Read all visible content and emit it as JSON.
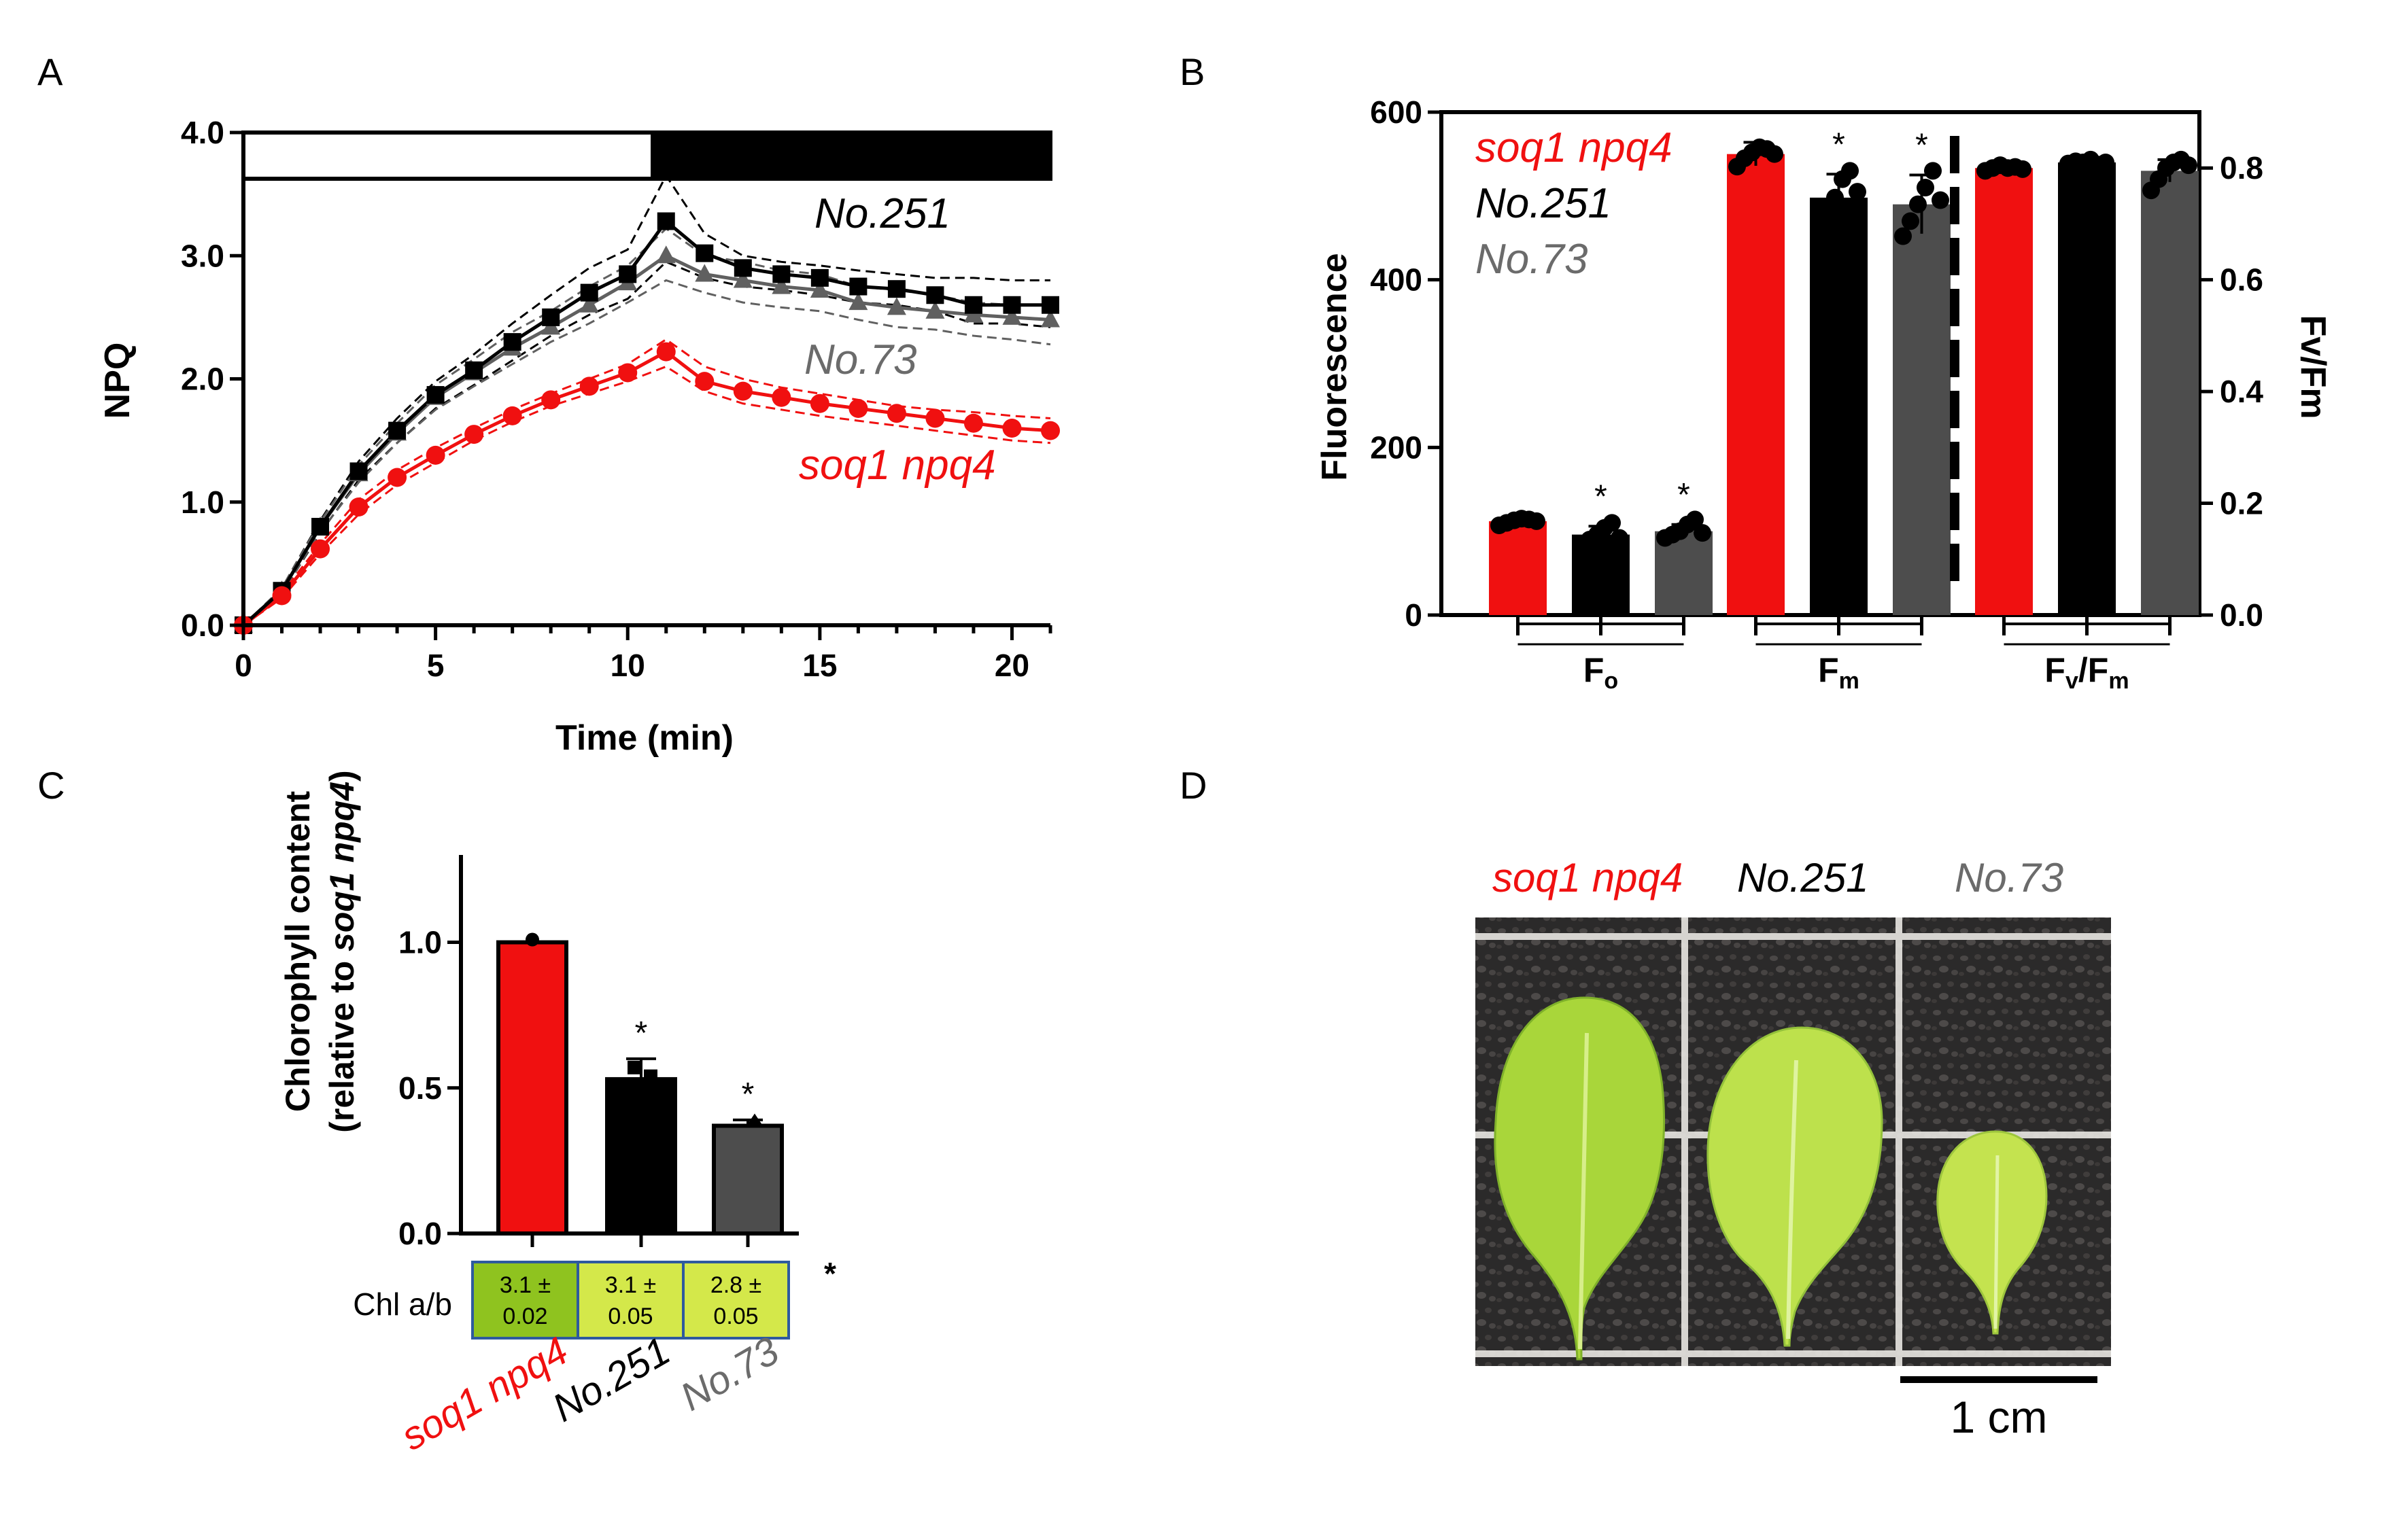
{
  "figure": {
    "panels": [
      {
        "label": "A"
      },
      {
        "label": "B"
      },
      {
        "label": "C"
      },
      {
        "label": "D"
      }
    ],
    "colors": {
      "red": "#f01010",
      "black": "#000000",
      "gray": "#4d4d4d",
      "gray_text": "#6b6b6b",
      "chl_cell_dark": "#8fc31f",
      "chl_cell_light": "#d4e84a",
      "chl_border": "#2e5a9e"
    },
    "panelA_labels": {
      "no251": "No.251",
      "no73": "No.73",
      "soq": "soq1 npq4"
    },
    "panelB_legend": [
      {
        "text": "soq1 npq4",
        "color": "#f01010"
      },
      {
        "text": "No.251",
        "color": "#000000"
      },
      {
        "text": "No.73",
        "color": "#6b6b6b"
      }
    ],
    "panelB_groups": [
      {
        "main": "F",
        "sub": "o",
        "tail": "",
        "tail_sub": ""
      },
      {
        "main": "F",
        "sub": "m",
        "tail": "",
        "tail_sub": ""
      },
      {
        "main": "F",
        "sub": "v",
        "tail": "/F",
        "tail_sub": "m"
      }
    ],
    "panelC_chl_label": "Chl a/b",
    "panelC_cells": [
      {
        "text": "3.1 ±",
        "text2": "0.02"
      },
      {
        "text": "3.1 ±",
        "text2": "0.05"
      },
      {
        "text": "2.8 ±",
        "text2": "0.05"
      }
    ],
    "panelC_chl_star": "*",
    "panelC_xlabels": [
      "soq1 npq4",
      "No.251",
      "No.73"
    ],
    "panelD": {
      "labels": [
        "soq1 npq4",
        "No.251",
        "No.73"
      ],
      "scale": "1 cm"
    }
  },
  "chart_data": [
    {
      "panel": "A",
      "type": "line",
      "xlabel": "Time (min)",
      "ylabel": "NPQ",
      "xlim": [
        0,
        21
      ],
      "ylim": [
        0,
        4
      ],
      "xticks": [
        0,
        5,
        10,
        15,
        20
      ],
      "yticks": [
        0.0,
        1.0,
        2.0,
        3.0,
        4.0
      ],
      "light_bar": {
        "light": [
          0,
          11
        ],
        "dark": [
          11,
          21
        ]
      },
      "series": [
        {
          "name": "No.251",
          "color": "#000000",
          "marker": "square",
          "x": [
            0,
            1,
            2,
            3,
            4,
            5,
            6,
            7,
            8,
            9,
            10,
            11,
            12,
            13,
            14,
            15,
            16,
            17,
            18,
            19,
            20,
            21
          ],
          "y": [
            0,
            0.28,
            0.8,
            1.25,
            1.58,
            1.87,
            2.07,
            2.3,
            2.5,
            2.7,
            2.85,
            3.28,
            3.02,
            2.9,
            2.85,
            2.82,
            2.75,
            2.73,
            2.68,
            2.6,
            2.6,
            2.6
          ],
          "upper": [
            0,
            0.3,
            0.85,
            1.33,
            1.68,
            1.98,
            2.2,
            2.45,
            2.68,
            2.9,
            3.05,
            3.65,
            3.18,
            3.0,
            2.95,
            2.92,
            2.88,
            2.85,
            2.82,
            2.82,
            2.8,
            2.8
          ],
          "lower": [
            0,
            0.26,
            0.75,
            1.18,
            1.48,
            1.76,
            1.95,
            2.15,
            2.35,
            2.52,
            2.65,
            2.95,
            2.82,
            2.75,
            2.72,
            2.68,
            2.62,
            2.6,
            2.55,
            2.45,
            2.45,
            2.42
          ]
        },
        {
          "name": "No.73",
          "color": "#606060",
          "marker": "triangle",
          "x": [
            0,
            1,
            2,
            3,
            4,
            5,
            6,
            7,
            8,
            9,
            10,
            11,
            12,
            13,
            14,
            15,
            16,
            17,
            18,
            19,
            20,
            21
          ],
          "y": [
            0,
            0.28,
            0.8,
            1.23,
            1.56,
            1.85,
            2.05,
            2.25,
            2.42,
            2.6,
            2.78,
            3.0,
            2.85,
            2.8,
            2.75,
            2.72,
            2.62,
            2.58,
            2.55,
            2.52,
            2.5,
            2.48
          ],
          "upper": [
            0,
            0.3,
            0.84,
            1.3,
            1.64,
            1.95,
            2.16,
            2.38,
            2.55,
            2.75,
            2.92,
            3.22,
            3.0,
            2.95,
            2.88,
            2.85,
            2.75,
            2.72,
            2.68,
            2.62,
            2.6,
            2.6
          ],
          "lower": [
            0,
            0.26,
            0.76,
            1.16,
            1.48,
            1.75,
            1.94,
            2.12,
            2.3,
            2.45,
            2.62,
            2.8,
            2.7,
            2.62,
            2.58,
            2.55,
            2.48,
            2.42,
            2.4,
            2.35,
            2.32,
            2.28
          ]
        },
        {
          "name": "soq1 npq4",
          "color": "#f01010",
          "marker": "circle",
          "x": [
            0,
            1,
            2,
            3,
            4,
            5,
            6,
            7,
            8,
            9,
            10,
            11,
            12,
            13,
            14,
            15,
            16,
            17,
            18,
            19,
            20,
            21
          ],
          "y": [
            0,
            0.24,
            0.62,
            0.96,
            1.2,
            1.38,
            1.55,
            1.7,
            1.83,
            1.94,
            2.05,
            2.22,
            1.98,
            1.9,
            1.85,
            1.8,
            1.76,
            1.72,
            1.68,
            1.64,
            1.6,
            1.58
          ],
          "upper": [
            0,
            0.26,
            0.66,
            1.02,
            1.26,
            1.44,
            1.6,
            1.75,
            1.88,
            2.0,
            2.12,
            2.32,
            2.1,
            2.0,
            1.93,
            1.88,
            1.83,
            1.78,
            1.75,
            1.73,
            1.7,
            1.68
          ],
          "lower": [
            0,
            0.22,
            0.58,
            0.9,
            1.14,
            1.32,
            1.5,
            1.65,
            1.78,
            1.88,
            1.98,
            2.1,
            1.9,
            1.8,
            1.75,
            1.7,
            1.66,
            1.62,
            1.58,
            1.54,
            1.5,
            1.48
          ]
        }
      ]
    },
    {
      "panel": "B",
      "type": "bar",
      "ylabel": "Fluorescence",
      "y2label": "Fv/Fm",
      "ylim": [
        0,
        600
      ],
      "yticks": [
        0,
        200,
        400,
        600
      ],
      "y2lim": [
        0,
        0.9
      ],
      "y2ticks": [
        0.0,
        0.2,
        0.4,
        0.6,
        0.8
      ],
      "groups": [
        "Fo",
        "Fm",
        "Fv/Fm"
      ],
      "series": [
        {
          "name": "soq1 npq4",
          "color": "#f01010",
          "values": [
            112,
            550,
            0.8
          ],
          "err": [
            4,
            14,
            0.006
          ],
          "star": [
            false,
            false,
            false
          ],
          "points": [
            [
              107,
              110,
              113,
              115,
              114,
              112
            ],
            [
              535,
              545,
              552,
              558,
              556,
              550
            ],
            [
              0.795,
              0.8,
              0.805,
              0.8,
              0.802,
              0.798
            ]
          ]
        },
        {
          "name": "No.251",
          "color": "#000000",
          "values": [
            96,
            498,
            0.81
          ],
          "err": [
            10,
            28,
            0.005
          ],
          "star": [
            true,
            true,
            false
          ],
          "points": [
            [
              84,
              90,
              96,
              104,
              110,
              92
            ],
            [
              470,
              485,
              498,
              520,
              530,
              505
            ],
            [
              0.808,
              0.812,
              0.81,
              0.815,
              0.806,
              0.81
            ]
          ]
        },
        {
          "name": "No.73",
          "color": "#4d4d4d",
          "values": [
            100,
            490,
            0.795
          ],
          "err": [
            8,
            35,
            0.02
          ],
          "star": [
            true,
            true,
            false
          ],
          "points": [
            [
              92,
              96,
              100,
              108,
              114,
              98
            ],
            [
              452,
              470,
              490,
              510,
              530,
              495
            ],
            [
              0.76,
              0.78,
              0.8,
              0.81,
              0.815,
              0.805
            ]
          ]
        }
      ]
    },
    {
      "panel": "C",
      "type": "bar",
      "ylabel": "Chlorophyll content",
      "ylabel2": "(relative to soq1 npq4)",
      "ylabel2_plain": "(relative to ",
      "ylabel2_it": "soq1 npq4",
      "ylabel2_end": ")",
      "ylim": [
        0,
        1.3
      ],
      "yticks": [
        0.0,
        0.5,
        1.0
      ],
      "categories": [
        "soq1 npq4",
        "No.251",
        "No.73"
      ],
      "values": [
        1.0,
        0.53,
        0.37
      ],
      "err": [
        0.0,
        0.07,
        0.02
      ],
      "colors": [
        "#f01010",
        "#000000",
        "#4d4d4d"
      ],
      "star": [
        false,
        true,
        true
      ],
      "chl_ab": [
        "3.1 ± 0.02",
        "3.1 ± 0.05",
        "2.8 ± 0.05"
      ]
    }
  ]
}
